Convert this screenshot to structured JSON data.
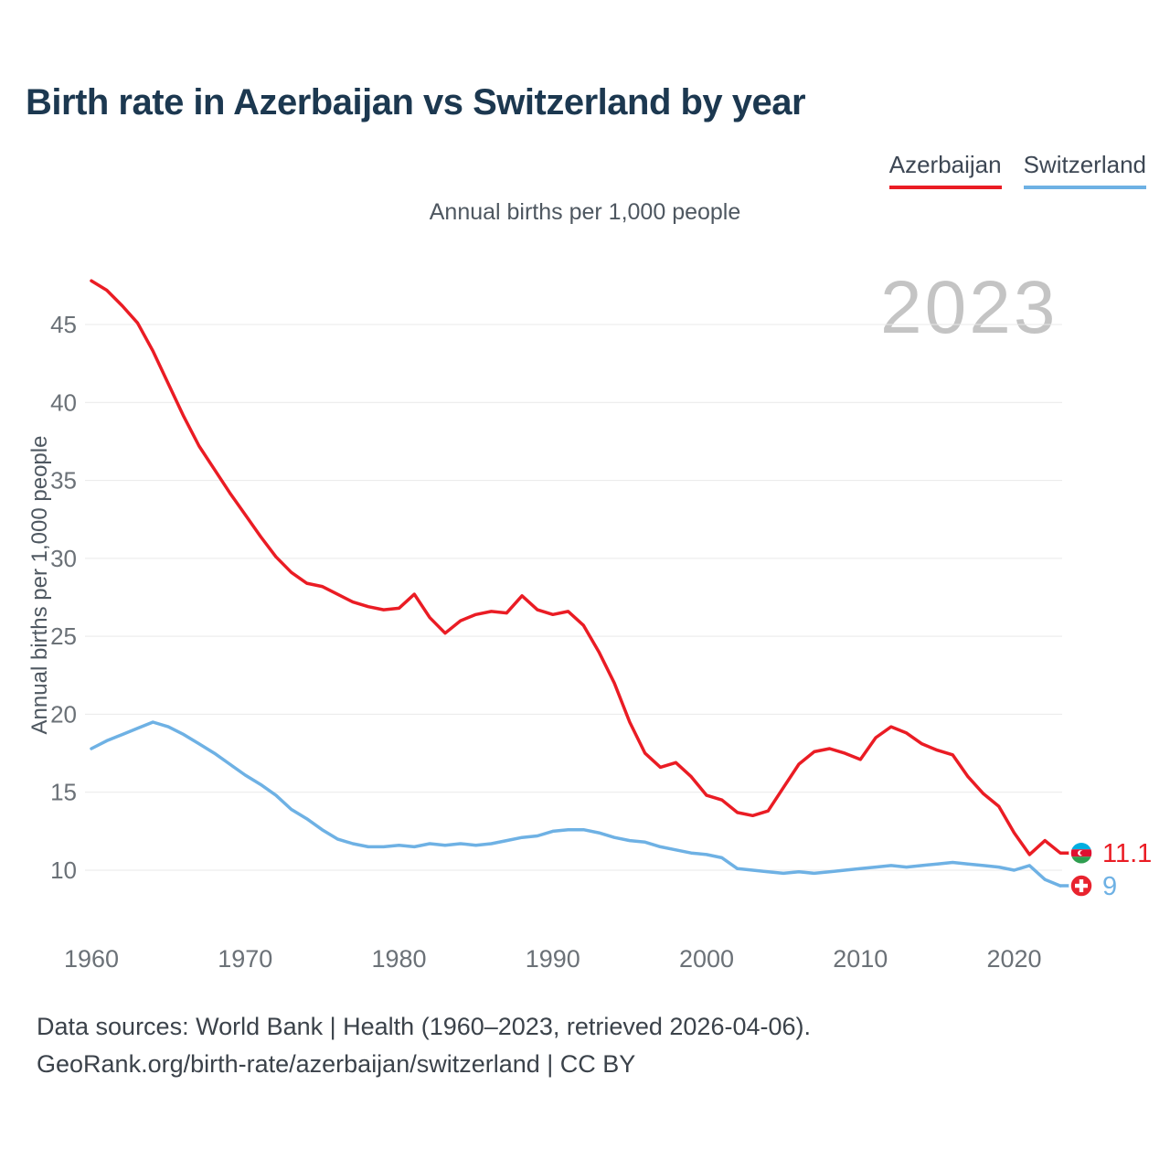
{
  "page": {
    "title": "Birth rate in Azerbaijan vs Switzerland by year",
    "subtitle": "Annual births per 1,000 people",
    "watermark": "2023",
    "footer_line1": "Data sources: World Bank | Health (1960–2023, retrieved 2026-04-06).",
    "footer_line2": "GeoRank.org/birth-rate/azerbaijan/switzerland | CC BY"
  },
  "legend": {
    "items": [
      {
        "label": "Azerbaijan",
        "color": "#ea1c24"
      },
      {
        "label": "Switzerland",
        "color": "#6eb1e4"
      }
    ]
  },
  "chart_data": {
    "type": "line",
    "title": "Birth rate in Azerbaijan vs Switzerland by year",
    "subtitle": "Annual births per 1,000 people",
    "xlabel": "",
    "ylabel": "Annual births per 1,000 people",
    "ylim": [
      8,
      49
    ],
    "grid": true,
    "legend_position": "top-right",
    "yticks": [
      10,
      15,
      20,
      25,
      30,
      35,
      40,
      45
    ],
    "xticks": [
      1960,
      1970,
      1980,
      1990,
      2000,
      2010,
      2020
    ],
    "years": [
      1960,
      1961,
      1962,
      1963,
      1964,
      1965,
      1966,
      1967,
      1968,
      1969,
      1970,
      1971,
      1972,
      1973,
      1974,
      1975,
      1976,
      1977,
      1978,
      1979,
      1980,
      1981,
      1982,
      1983,
      1984,
      1985,
      1986,
      1987,
      1988,
      1989,
      1990,
      1991,
      1992,
      1993,
      1994,
      1995,
      1996,
      1997,
      1998,
      1999,
      2000,
      2001,
      2002,
      2003,
      2004,
      2005,
      2006,
      2007,
      2008,
      2009,
      2010,
      2011,
      2012,
      2013,
      2014,
      2015,
      2016,
      2017,
      2018,
      2019,
      2020,
      2021,
      2022,
      2023
    ],
    "series": [
      {
        "name": "Azerbaijan",
        "color": "#ea1c24",
        "flag": "azerbaijan",
        "end_label": "11.1",
        "end_value": 11.1,
        "values": [
          47.8,
          47.2,
          46.2,
          45.1,
          43.3,
          41.2,
          39.1,
          37.2,
          35.7,
          34.2,
          32.8,
          31.4,
          30.1,
          29.1,
          28.4,
          28.2,
          27.7,
          27.2,
          26.9,
          26.7,
          26.8,
          27.7,
          26.2,
          25.2,
          26.0,
          26.4,
          26.6,
          26.5,
          27.6,
          26.7,
          26.4,
          26.6,
          25.7,
          24.0,
          22.0,
          19.5,
          17.5,
          16.6,
          16.9,
          16.0,
          14.8,
          14.5,
          13.7,
          13.5,
          13.8,
          15.3,
          16.8,
          17.6,
          17.8,
          17.5,
          17.1,
          18.5,
          19.2,
          18.8,
          18.1,
          17.7,
          17.4,
          16.0,
          14.9,
          14.1,
          12.4,
          11.0,
          11.9,
          11.1
        ]
      },
      {
        "name": "Switzerland",
        "color": "#6eb1e4",
        "flag": "switzerland",
        "end_label": "9",
        "end_value": 9.0,
        "values": [
          17.8,
          18.3,
          18.7,
          19.1,
          19.5,
          19.2,
          18.7,
          18.1,
          17.5,
          16.8,
          16.1,
          15.5,
          14.8,
          13.9,
          13.3,
          12.6,
          12.0,
          11.7,
          11.5,
          11.5,
          11.6,
          11.5,
          11.7,
          11.6,
          11.7,
          11.6,
          11.7,
          11.9,
          12.1,
          12.2,
          12.5,
          12.6,
          12.6,
          12.4,
          12.1,
          11.9,
          11.8,
          11.5,
          11.3,
          11.1,
          11.0,
          10.8,
          10.1,
          10.0,
          9.9,
          9.8,
          9.9,
          9.8,
          9.9,
          10.0,
          10.1,
          10.2,
          10.3,
          10.2,
          10.3,
          10.4,
          10.5,
          10.4,
          10.3,
          10.2,
          10.0,
          10.3,
          9.4,
          9.0
        ]
      }
    ]
  }
}
